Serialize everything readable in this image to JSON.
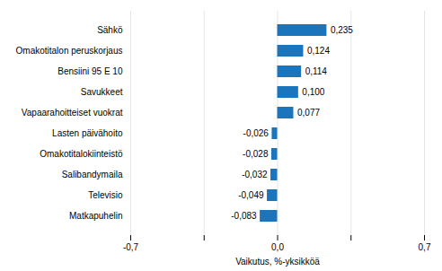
{
  "chart_data": {
    "type": "bar",
    "orientation": "horizontal",
    "categories": [
      "Matkapuhelin",
      "Televisio",
      "Salibandymaila",
      "Omakotitalokiinteistö",
      "Lasten päivähoito",
      "Vapaarahoitteiset vuokrat",
      "Savukkeet",
      "Bensiini 95 E 10",
      "Omakotitalon peruskorjaus",
      "Sähkö"
    ],
    "values": [
      -0.083,
      -0.049,
      -0.032,
      -0.028,
      -0.026,
      0.077,
      0.1,
      0.114,
      0.124,
      0.235
    ],
    "value_labels": [
      "-0,083",
      "-0,049",
      "-0,032",
      "-0,028",
      "-0,026",
      "0,077",
      "0,100",
      "0,114",
      "0,124",
      "0,235"
    ],
    "data_labels": true,
    "color": "#1a75bc",
    "xlabel": "Vaikutus, %-yksikköä",
    "xlim": [
      -0.7,
      0.7
    ],
    "xticks": [
      {
        "value": -0.7,
        "label": "-0,7"
      },
      {
        "value": -0.35,
        "label": null
      },
      {
        "value": 0.0,
        "label": "0,0"
      },
      {
        "value": 0.35,
        "label": null
      },
      {
        "value": 0.7,
        "label": "0,7"
      }
    ],
    "grid": true
  }
}
